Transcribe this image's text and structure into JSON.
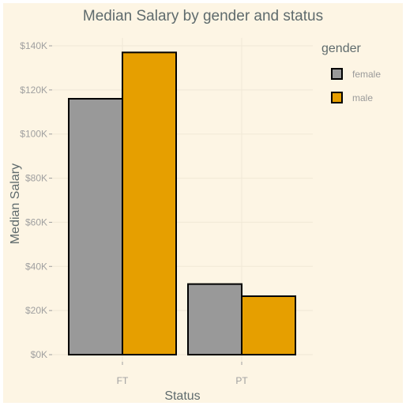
{
  "chart_data": {
    "type": "bar",
    "title": "Median Salary by gender and status",
    "xlabel": "Status",
    "ylabel": "Median Salary",
    "categories": [
      "FT",
      "PT"
    ],
    "series": [
      {
        "name": "female",
        "values": [
          116000,
          32000
        ],
        "color": "#999999"
      },
      {
        "name": "male",
        "values": [
          137000,
          26500
        ],
        "color": "#e69f00"
      }
    ],
    "ylim": [
      0,
      140000
    ],
    "yticks": [
      0,
      20000,
      40000,
      60000,
      80000,
      100000,
      120000,
      140000
    ],
    "ytick_labels": [
      "$0K",
      "$20K",
      "$40K",
      "$60K",
      "$80K",
      "$100K",
      "$120K",
      "$140K"
    ],
    "legend": {
      "title": "gender",
      "position": "right"
    },
    "grid": true,
    "bar_outline_color": "#000000",
    "background_color": "#fdf5e4",
    "grid_color": "#f0e8d6"
  }
}
